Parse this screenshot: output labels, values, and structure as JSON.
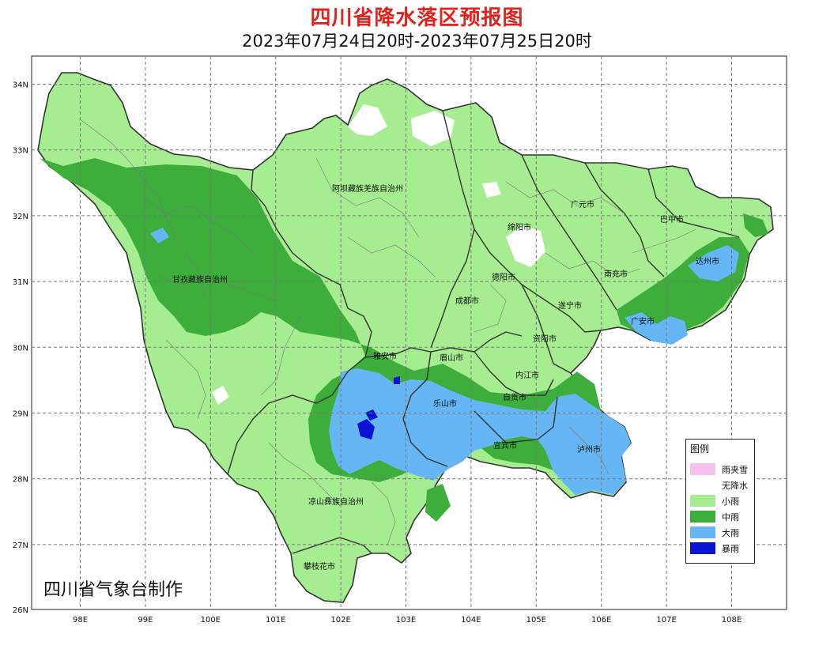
{
  "title": "四川省降水落区预报图",
  "subtitle": "2023年07月24日20时-2023年07月25日20时",
  "credit": "四川省气象台制作",
  "colors": {
    "none": "#ffffff",
    "light": "#a6ec90",
    "moderate": "#3dae3c",
    "heavy": "#66b6f6",
    "rainstorm": "#0a14d2",
    "sleet": "#f8c0ee",
    "border": "#333333",
    "grid": "#777777"
  },
  "legend": {
    "title": "图例",
    "items": [
      {
        "label": "雨夹雪",
        "color": "#f8c0ee"
      },
      {
        "label": "无降水",
        "color": "#ffffff"
      },
      {
        "label": "小雨",
        "color": "#a6ec90"
      },
      {
        "label": "中雨",
        "color": "#3dae3c"
      },
      {
        "label": "大雨",
        "color": "#66b6f6"
      },
      {
        "label": "暴雨",
        "color": "#0a14d2"
      }
    ]
  },
  "axes": {
    "x_ticks": [
      "98E",
      "99E",
      "100E",
      "101E",
      "102E",
      "103E",
      "104E",
      "105E",
      "106E",
      "107E",
      "108E"
    ],
    "y_ticks": [
      "34N",
      "33N",
      "32N",
      "31N",
      "30N",
      "29N",
      "28N",
      "27N",
      "26N"
    ]
  },
  "regions": [
    {
      "name": "阿坝藏族羌族自治州"
    },
    {
      "name": "甘孜藏族自治州"
    },
    {
      "name": "凉山彝族自治州"
    },
    {
      "name": "攀枝花市"
    },
    {
      "name": "广元市"
    },
    {
      "name": "巴中市"
    },
    {
      "name": "绵阳市"
    },
    {
      "name": "达州市"
    },
    {
      "name": "德阳市"
    },
    {
      "name": "南充市"
    },
    {
      "name": "成都市"
    },
    {
      "name": "遂宁市"
    },
    {
      "name": "广安市"
    },
    {
      "name": "资阳市"
    },
    {
      "name": "雅安市"
    },
    {
      "name": "眉山市"
    },
    {
      "name": "内江市"
    },
    {
      "name": "乐山市"
    },
    {
      "name": "自贡市"
    },
    {
      "name": "宜宾市"
    },
    {
      "name": "泸州市"
    }
  ]
}
